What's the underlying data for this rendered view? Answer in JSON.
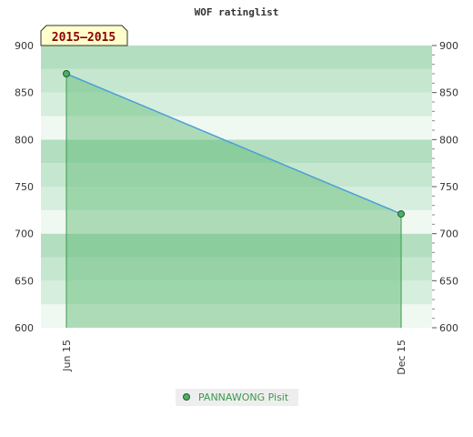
{
  "chart_data": {
    "type": "area",
    "title": "WOF ratinglist",
    "period_label": "2015–2015",
    "categories": [
      "Jun 15",
      "Dec 15"
    ],
    "series": [
      {
        "name": "PANNAWONG Pisit",
        "values": [
          870,
          721
        ]
      }
    ],
    "ylim": [
      600,
      900
    ],
    "y_ticks": [
      600,
      650,
      700,
      750,
      800,
      850,
      900
    ],
    "grid": true,
    "legend_position": "bottom",
    "colors": {
      "line": "#4a9fd8",
      "fill": "#5cb870",
      "marker": "#4caf6a",
      "drop_line": "#3a9a4a",
      "badge_bg": "#ffffcc",
      "legend_bg": "#eeeeee"
    }
  }
}
